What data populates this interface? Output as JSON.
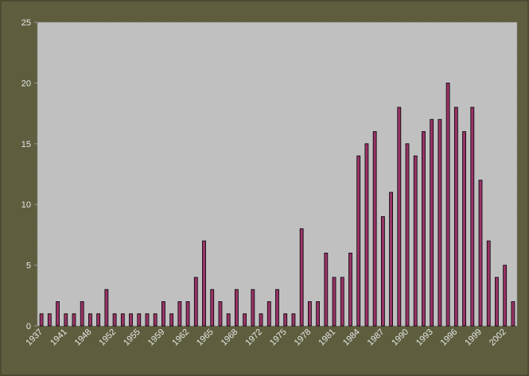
{
  "chart_data": {
    "type": "bar",
    "categories": [
      "1937",
      null,
      null,
      "1941",
      null,
      null,
      "1948",
      null,
      null,
      "1952",
      null,
      null,
      "1955",
      null,
      null,
      "1959",
      null,
      null,
      "1962",
      null,
      null,
      "1965",
      null,
      null,
      "1968",
      null,
      null,
      "1972",
      null,
      null,
      "1975",
      null,
      null,
      "1978",
      null,
      null,
      "1981",
      null,
      null,
      "1984",
      null,
      null,
      "1987",
      null,
      null,
      "1990",
      null,
      null,
      "1993",
      null,
      null,
      "1996",
      null,
      null,
      "1999",
      null,
      null,
      "2002",
      null
    ],
    "values": [
      1,
      1,
      2,
      1,
      1,
      2,
      1,
      1,
      3,
      1,
      1,
      1,
      1,
      1,
      1,
      2,
      1,
      2,
      2,
      4,
      7,
      3,
      2,
      1,
      3,
      1,
      3,
      1,
      2,
      3,
      1,
      1,
      8,
      2,
      2,
      6,
      4,
      4,
      6,
      14,
      15,
      16,
      9,
      11,
      18,
      15,
      14,
      16,
      17,
      17,
      20,
      18,
      16,
      18,
      12,
      7,
      4,
      5,
      2
    ],
    "color": "#993366",
    "ylim": [
      0,
      25
    ],
    "yticks": [
      0,
      5,
      10,
      15,
      20,
      25
    ],
    "grid": false
  }
}
